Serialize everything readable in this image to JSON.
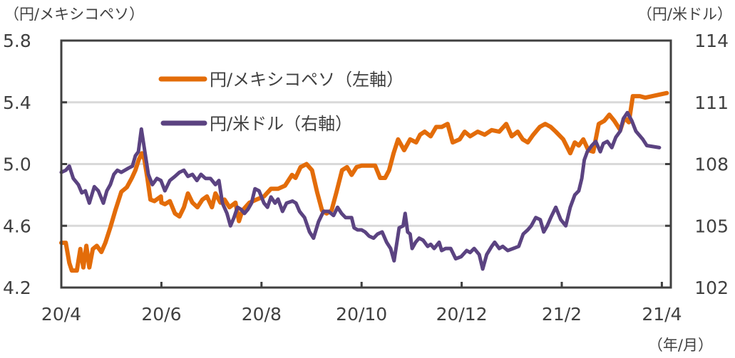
{
  "chart_data": {
    "type": "line",
    "title": "",
    "left_axis": {
      "unit_label": "（円/メキシコペソ）",
      "ylim": [
        4.2,
        5.8
      ],
      "ticks": [
        "5.8",
        "5.4",
        "5.0",
        "4.6",
        "4.2"
      ],
      "tick_values": [
        5.8,
        5.4,
        5.0,
        4.6,
        4.2
      ]
    },
    "right_axis": {
      "unit_label": "（円/米ドル）",
      "ylim": [
        102,
        114
      ],
      "ticks": [
        "114",
        "111",
        "108",
        "105",
        "102"
      ],
      "tick_values": [
        114,
        111,
        108,
        105,
        102
      ]
    },
    "x_axis": {
      "unit_label": "（年/月）",
      "xlim_months": [
        0,
        12.25
      ],
      "ticks": [
        "20/4",
        "20/6",
        "20/8",
        "20/10",
        "20/12",
        "21/2",
        "21/4"
      ],
      "tick_months": [
        0,
        2,
        4,
        6,
        8,
        10,
        12
      ]
    },
    "grid": true,
    "legend": "top-left-inside",
    "series": [
      {
        "name": "円/メキシコペソ（左軸）",
        "axis": "left",
        "color": "#E36C09",
        "x_months": [
          0,
          0.09,
          0.16,
          0.21,
          0.31,
          0.38,
          0.44,
          0.5,
          0.56,
          0.63,
          0.71,
          0.8,
          0.88,
          0.98,
          1.08,
          1.2,
          1.31,
          1.41,
          1.48,
          1.55,
          1.61,
          1.66,
          1.72,
          1.78,
          1.86,
          1.99,
          2.0,
          2.07,
          2.17,
          2.27,
          2.36,
          2.45,
          2.53,
          2.62,
          2.72,
          2.82,
          2.91,
          3.01,
          3.08,
          3.18,
          3.26,
          3.36,
          3.48,
          3.55,
          3.62,
          3.76,
          3.9,
          4.05,
          4.19,
          4.33,
          4.47,
          4.61,
          4.68,
          4.78,
          4.9,
          5.01,
          5.11,
          5.21,
          5.3,
          5.4,
          5.5,
          5.61,
          5.71,
          5.8,
          5.9,
          6.0,
          6.11,
          6.18,
          6.27,
          6.37,
          6.47,
          6.55,
          6.64,
          6.73,
          6.85,
          6.97,
          7.09,
          7.17,
          7.26,
          7.38,
          7.49,
          7.6,
          7.72,
          7.82,
          7.96,
          8.06,
          8.17,
          8.32,
          8.46,
          8.6,
          8.75,
          8.89,
          9.0,
          9.12,
          9.22,
          9.32,
          9.43,
          9.56,
          9.67,
          9.78,
          9.88,
          10.03,
          10.17,
          10.26,
          10.34,
          10.43,
          10.53,
          10.63,
          10.74,
          10.85,
          10.95,
          11.05,
          11.17,
          11.25,
          11.34,
          11.42,
          11.56,
          11.67,
          11.81,
          11.95,
          12.1
        ],
        "values": [
          4.49,
          4.49,
          4.36,
          4.31,
          4.31,
          4.45,
          4.33,
          4.47,
          4.33,
          4.45,
          4.47,
          4.43,
          4.49,
          4.59,
          4.7,
          4.82,
          4.85,
          4.91,
          4.96,
          5.03,
          5.07,
          5.03,
          4.91,
          4.77,
          4.76,
          4.79,
          4.75,
          4.74,
          4.76,
          4.68,
          4.66,
          4.72,
          4.81,
          4.75,
          4.72,
          4.77,
          4.79,
          4.72,
          4.81,
          4.75,
          4.77,
          4.72,
          4.75,
          4.63,
          4.7,
          4.75,
          4.77,
          4.79,
          4.84,
          4.84,
          4.86,
          4.93,
          4.91,
          4.98,
          5.0,
          4.96,
          4.82,
          4.7,
          4.68,
          4.7,
          4.82,
          4.96,
          4.98,
          4.93,
          4.98,
          4.99,
          4.99,
          4.99,
          4.99,
          4.91,
          4.91,
          4.96,
          5.07,
          5.16,
          5.09,
          5.16,
          5.14,
          5.19,
          5.21,
          5.18,
          5.24,
          5.24,
          5.26,
          5.14,
          5.16,
          5.21,
          5.18,
          5.21,
          5.19,
          5.22,
          5.21,
          5.26,
          5.18,
          5.21,
          5.16,
          5.14,
          5.19,
          5.24,
          5.26,
          5.24,
          5.21,
          5.16,
          5.07,
          5.14,
          5.12,
          5.16,
          5.09,
          5.08,
          5.26,
          5.28,
          5.32,
          5.28,
          5.22,
          5.3,
          5.27,
          5.44,
          5.44,
          5.43,
          5.44,
          5.45,
          5.46
        ]
      },
      {
        "name": "円/米ドル（右軸）",
        "axis": "right",
        "color": "#5B4381",
        "x_months": [
          0,
          0.09,
          0.16,
          0.24,
          0.34,
          0.41,
          0.48,
          0.56,
          0.66,
          0.74,
          0.84,
          0.91,
          0.98,
          1.05,
          1.12,
          1.2,
          1.27,
          1.34,
          1.42,
          1.48,
          1.54,
          1.6,
          1.67,
          1.74,
          1.82,
          1.91,
          1.99,
          2.07,
          2.17,
          2.27,
          2.36,
          2.45,
          2.53,
          2.62,
          2.71,
          2.79,
          2.88,
          2.98,
          3.08,
          3.15,
          3.22,
          3.31,
          3.38,
          3.45,
          3.52,
          3.59,
          3.66,
          3.73,
          3.8,
          3.87,
          3.95,
          4.05,
          4.12,
          4.19,
          4.27,
          4.33,
          4.42,
          4.5,
          4.62,
          4.69,
          4.76,
          4.86,
          4.96,
          5.04,
          5.14,
          5.24,
          5.34,
          5.44,
          5.52,
          5.6,
          5.68,
          5.75,
          5.8,
          5.85,
          5.92,
          6.0,
          6.07,
          6.15,
          6.24,
          6.32,
          6.41,
          6.5,
          6.58,
          6.65,
          6.75,
          6.83,
          6.87,
          6.92,
          6.97,
          7.01,
          7.08,
          7.15,
          7.23,
          7.32,
          7.38,
          7.45,
          7.55,
          7.6,
          7.68,
          7.78,
          7.88,
          7.99,
          8.1,
          8.17,
          8.25,
          8.35,
          8.42,
          8.5,
          8.6,
          8.66,
          8.75,
          8.82,
          8.92,
          9.03,
          9.14,
          9.23,
          9.32,
          9.39,
          9.48,
          9.57,
          9.64,
          9.71,
          9.78,
          9.88,
          9.98,
          10.08,
          10.17,
          10.26,
          10.34,
          10.4,
          10.45,
          10.51,
          10.6,
          10.68,
          10.77,
          10.83,
          10.91,
          11.0,
          11.08,
          11.17,
          11.23,
          11.31,
          11.4,
          11.48,
          11.55,
          11.62,
          11.7,
          11.95
        ],
        "values": [
          107.6,
          107.7,
          107.9,
          107.3,
          107.0,
          106.6,
          106.7,
          106.1,
          106.9,
          106.7,
          106.1,
          106.7,
          107.0,
          107.5,
          107.7,
          107.6,
          107.7,
          107.8,
          107.9,
          108.4,
          108.6,
          109.7,
          108.6,
          107.5,
          107.0,
          107.3,
          107.2,
          106.7,
          107.2,
          107.4,
          107.6,
          107.7,
          107.4,
          107.5,
          107.2,
          107.5,
          107.3,
          107.3,
          107.0,
          107.2,
          106.1,
          105.6,
          105.0,
          105.4,
          105.9,
          105.8,
          105.6,
          105.8,
          106.1,
          106.8,
          106.7,
          106.1,
          105.9,
          106.4,
          106.1,
          106.3,
          105.7,
          106.1,
          106.2,
          106.1,
          105.7,
          105.4,
          104.7,
          104.4,
          105.2,
          105.7,
          105.7,
          105.5,
          105.9,
          105.6,
          105.4,
          105.4,
          105.4,
          104.9,
          104.8,
          104.8,
          104.7,
          104.5,
          104.4,
          104.6,
          104.7,
          104.2,
          103.9,
          103.3,
          104.9,
          105.0,
          105.6,
          104.7,
          104.6,
          103.9,
          104.2,
          104.4,
          104.3,
          104.0,
          104.1,
          103.9,
          104.2,
          103.8,
          103.9,
          103.9,
          103.4,
          103.5,
          103.8,
          103.7,
          103.9,
          103.6,
          102.9,
          103.6,
          104.0,
          104.2,
          103.9,
          104.0,
          103.8,
          103.9,
          104.0,
          104.6,
          104.8,
          105.0,
          105.4,
          105.3,
          104.7,
          105.0,
          105.4,
          105.9,
          105.3,
          105.0,
          105.9,
          106.5,
          106.7,
          107.3,
          108.2,
          108.6,
          108.9,
          109.1,
          108.6,
          109.0,
          109.1,
          108.8,
          109.3,
          109.6,
          110.2,
          110.5,
          110.1,
          109.6,
          109.4,
          109.2,
          108.9,
          108.8,
          108.8
        ]
      }
    ]
  }
}
